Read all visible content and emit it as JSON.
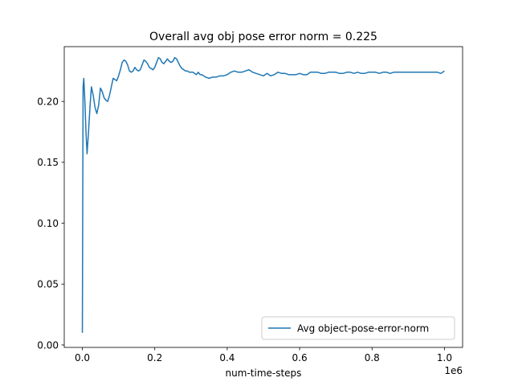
{
  "chart_data": {
    "type": "line",
    "title": "Overall avg obj pose error norm = 0.225",
    "xlabel": "num-time-steps",
    "ylabel": "",
    "x_multiplier_label": "1e6",
    "xlim": [
      -0.05,
      1.05
    ],
    "ylim": [
      -0.002,
      0.245
    ],
    "xticks": [
      0.0,
      0.2,
      0.4,
      0.6,
      0.8,
      1.0
    ],
    "xtick_labels": [
      "0.0",
      "0.2",
      "0.4",
      "0.6",
      "0.8",
      "1.0"
    ],
    "yticks": [
      0.0,
      0.05,
      0.1,
      0.15,
      0.2
    ],
    "ytick_labels": [
      "0.00",
      "0.05",
      "0.10",
      "0.15",
      "0.20"
    ],
    "grid": false,
    "legend_position": "lower-right",
    "series": [
      {
        "name": "Avg object-pose-error-norm",
        "color": "#1f77b4",
        "x": [
          0.0,
          0.002,
          0.004,
          0.007,
          0.01,
          0.013,
          0.017,
          0.021,
          0.025,
          0.03,
          0.035,
          0.04,
          0.045,
          0.05,
          0.055,
          0.06,
          0.065,
          0.07,
          0.075,
          0.08,
          0.085,
          0.09,
          0.095,
          0.1,
          0.105,
          0.11,
          0.115,
          0.12,
          0.125,
          0.13,
          0.135,
          0.14,
          0.145,
          0.15,
          0.155,
          0.16,
          0.165,
          0.17,
          0.175,
          0.18,
          0.185,
          0.19,
          0.195,
          0.2,
          0.205,
          0.21,
          0.215,
          0.22,
          0.225,
          0.23,
          0.235,
          0.24,
          0.245,
          0.25,
          0.255,
          0.26,
          0.265,
          0.27,
          0.275,
          0.28,
          0.285,
          0.29,
          0.295,
          0.3,
          0.305,
          0.31,
          0.315,
          0.32,
          0.325,
          0.33,
          0.34,
          0.35,
          0.36,
          0.37,
          0.38,
          0.39,
          0.4,
          0.41,
          0.42,
          0.43,
          0.44,
          0.45,
          0.46,
          0.47,
          0.48,
          0.49,
          0.5,
          0.51,
          0.52,
          0.53,
          0.54,
          0.55,
          0.56,
          0.57,
          0.58,
          0.59,
          0.6,
          0.61,
          0.62,
          0.63,
          0.64,
          0.65,
          0.66,
          0.67,
          0.68,
          0.69,
          0.7,
          0.71,
          0.72,
          0.73,
          0.74,
          0.75,
          0.76,
          0.77,
          0.78,
          0.79,
          0.8,
          0.81,
          0.82,
          0.83,
          0.84,
          0.85,
          0.86,
          0.87,
          0.88,
          0.89,
          0.9,
          0.91,
          0.92,
          0.93,
          0.94,
          0.95,
          0.96,
          0.97,
          0.98,
          0.99,
          1.0
        ],
        "y": [
          0.01,
          0.212,
          0.219,
          0.2,
          0.175,
          0.157,
          0.175,
          0.195,
          0.212,
          0.205,
          0.195,
          0.19,
          0.197,
          0.211,
          0.208,
          0.203,
          0.201,
          0.2,
          0.205,
          0.212,
          0.219,
          0.218,
          0.217,
          0.221,
          0.226,
          0.232,
          0.234,
          0.233,
          0.23,
          0.225,
          0.224,
          0.225,
          0.228,
          0.226,
          0.225,
          0.226,
          0.23,
          0.234,
          0.233,
          0.231,
          0.228,
          0.227,
          0.226,
          0.228,
          0.232,
          0.236,
          0.235,
          0.232,
          0.231,
          0.233,
          0.235,
          0.233,
          0.232,
          0.233,
          0.236,
          0.235,
          0.232,
          0.229,
          0.227,
          0.226,
          0.225,
          0.225,
          0.224,
          0.224,
          0.224,
          0.223,
          0.222,
          0.224,
          0.222,
          0.222,
          0.22,
          0.219,
          0.22,
          0.22,
          0.221,
          0.221,
          0.222,
          0.224,
          0.225,
          0.224,
          0.224,
          0.225,
          0.226,
          0.224,
          0.223,
          0.222,
          0.221,
          0.223,
          0.221,
          0.222,
          0.224,
          0.223,
          0.223,
          0.222,
          0.222,
          0.222,
          0.223,
          0.222,
          0.222,
          0.224,
          0.224,
          0.224,
          0.223,
          0.223,
          0.224,
          0.224,
          0.224,
          0.223,
          0.223,
          0.224,
          0.224,
          0.223,
          0.224,
          0.223,
          0.223,
          0.224,
          0.224,
          0.224,
          0.223,
          0.224,
          0.224,
          0.223,
          0.224,
          0.224,
          0.224,
          0.224,
          0.224,
          0.224,
          0.224,
          0.224,
          0.224,
          0.224,
          0.224,
          0.224,
          0.224,
          0.223,
          0.225
        ]
      }
    ]
  }
}
